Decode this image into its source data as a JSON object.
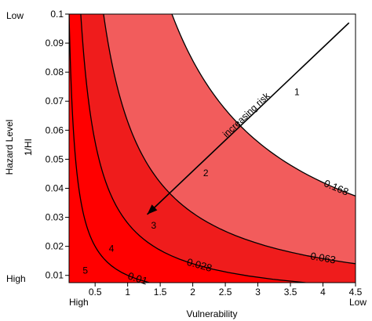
{
  "chart_data": {
    "type": "contour",
    "xlabel": "Vulnerability",
    "ylabel": "Hazard Level",
    "ylabel2": "1/HI",
    "xlim": [
      0.1,
      4.5
    ],
    "ylim": [
      0.0075,
      0.1
    ],
    "xticks": [
      "0.5",
      "1",
      "1.5",
      "2",
      "2.5",
      "3",
      "3.5",
      "4",
      "4.5"
    ],
    "yticks": [
      "0.01",
      "0.02",
      "0.03",
      "0.04",
      "0.05",
      "0.06",
      "0.07",
      "0.08",
      "0.09",
      "0.1"
    ],
    "corner_labels": {
      "top_left": "Low",
      "bottom_left": "High",
      "bottom_x_left": "High",
      "bottom_x_right": "Low"
    },
    "contour_levels": [
      {
        "label": "0.01",
        "value": 0.01
      },
      {
        "label": "0.028",
        "value": 0.028
      },
      {
        "label": "0.063",
        "value": 0.063
      },
      {
        "label": "0.168",
        "value": 0.168
      }
    ],
    "zones": [
      {
        "label": "1",
        "x": 3.6,
        "y": 0.073,
        "color": "#ffffff"
      },
      {
        "label": "2",
        "x": 2.2,
        "y": 0.045,
        "color": "#f25c5c"
      },
      {
        "label": "3",
        "x": 1.4,
        "y": 0.027,
        "color": "#ef1c1c"
      },
      {
        "label": "4",
        "x": 0.75,
        "y": 0.019,
        "color": "#ff0000"
      },
      {
        "label": "5",
        "x": 0.35,
        "y": 0.0115,
        "color": "#ff0000"
      }
    ],
    "annotation": {
      "text": "increasing risk",
      "arrow_from": {
        "x": 4.4,
        "y": 0.097
      },
      "arrow_to": {
        "x": 1.3,
        "y": 0.031
      }
    },
    "colors": {
      "outer_red": "#ff0000",
      "mid_red": "#ef1c1c",
      "pink": "#f25c5c",
      "light": "#ffffff"
    }
  }
}
